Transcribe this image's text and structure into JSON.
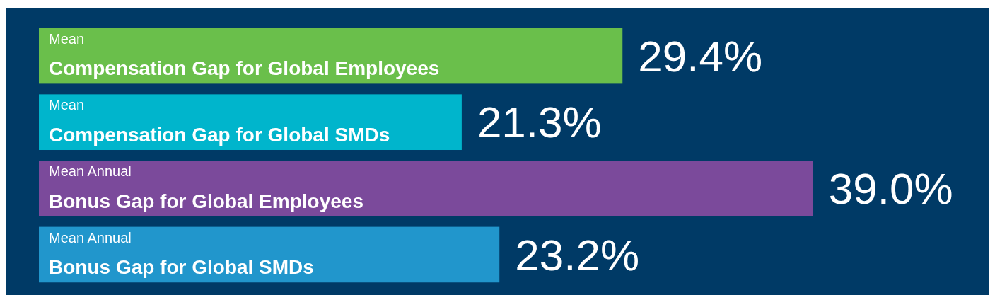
{
  "chart_data": {
    "type": "bar",
    "orientation": "horizontal",
    "categories": [
      "Mean\nCompensation Gap for Global Employees",
      "Mean\nCompensation Gap for Global SMDs",
      "Mean Annual\nBonus Gap for Global Employees",
      "Mean Annual\nBonus Gap for Global SMDs"
    ],
    "values": [
      29.4,
      21.3,
      39.0,
      23.2
    ],
    "colors": [
      "#6abf4b",
      "#00b5cc",
      "#7b4a9b",
      "#2196cc"
    ],
    "value_labels": [
      "29.4%",
      "21.3%",
      "39.0%",
      "23.2%"
    ]
  }
}
